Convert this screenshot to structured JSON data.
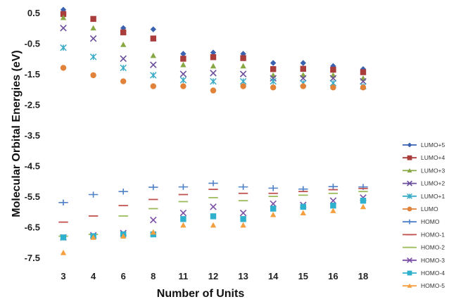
{
  "chart_data": {
    "type": "scatter",
    "title": "",
    "xlabel": "Number of Units",
    "ylabel": "Molecular Orbital  Energies (eV)",
    "categories": [
      "3",
      "4",
      "6",
      "8",
      "11",
      "12",
      "13",
      "14",
      "15",
      "16",
      "18"
    ],
    "yticks": [
      "0.5",
      "-0.5",
      "-1.5",
      "-2.5",
      "-3.5",
      "-4.5",
      "-5.5",
      "-6.5",
      "-7.5"
    ],
    "ylim": [
      -7.8,
      0.8
    ],
    "grid": false,
    "legend_position": "right",
    "series": [
      {
        "name": "LUMO+5",
        "color": "#3a62b0",
        "marker": "diamond",
        "values": [
          0.62,
          0.32,
          0.02,
          -0.02,
          -0.82,
          -0.78,
          -0.82,
          -1.12,
          -1.12,
          -1.22,
          -1.32
        ]
      },
      {
        "name": "LUMO+4",
        "color": "#a93d3b",
        "marker": "square",
        "values": [
          0.48,
          0.32,
          -0.12,
          -0.32,
          -0.98,
          -0.93,
          -0.96,
          -1.32,
          -1.31,
          -1.34,
          -1.42
        ]
      },
      {
        "name": "LUMO+3",
        "color": "#87a744",
        "marker": "triangle",
        "values": [
          0.36,
          0.02,
          -0.52,
          -0.88,
          -1.18,
          -1.22,
          -1.22,
          -1.52,
          -1.51,
          -1.52,
          -1.62
        ]
      },
      {
        "name": "LUMO+2",
        "color": "#6a4d9c",
        "marker": "x",
        "values": [
          0.02,
          -0.32,
          -0.98,
          -1.18,
          -1.48,
          -1.45,
          -1.48,
          -1.62,
          -1.62,
          -1.62,
          -1.72
        ]
      },
      {
        "name": "LUMO+1",
        "color": "#3aabc6",
        "marker": "star",
        "values": [
          -0.62,
          -0.92,
          -1.28,
          -1.52,
          -1.68,
          -1.72,
          -1.72,
          -1.72,
          -1.78,
          -1.78,
          -1.88
        ]
      },
      {
        "name": "LUMO",
        "color": "#e0823a",
        "marker": "circle",
        "values": [
          -1.28,
          -1.52,
          -1.72,
          -1.88,
          -1.88,
          -2.02,
          -1.88,
          -1.92,
          -1.88,
          -1.92,
          -1.92
        ]
      },
      {
        "name": "HOMO",
        "color": "#4f81c7",
        "marker": "plus",
        "values": [
          -5.68,
          -5.42,
          -5.32,
          -5.18,
          -5.17,
          -5.05,
          -5.17,
          -5.21,
          -5.24,
          -5.16,
          -5.17
        ]
      },
      {
        "name": "HOMO-1",
        "color": "#c0504d",
        "marker": "dash",
        "values": [
          -6.32,
          -6.12,
          -5.78,
          -5.58,
          -5.42,
          -5.25,
          -5.38,
          -5.38,
          -5.32,
          -5.26,
          -5.22
        ]
      },
      {
        "name": "HOMO-2",
        "color": "#9bbb59",
        "marker": "dash",
        "values": [
          -6.78,
          -6.72,
          -6.12,
          -5.88,
          -5.65,
          -5.52,
          -5.62,
          -5.48,
          -5.44,
          -5.38,
          -5.32
        ]
      },
      {
        "name": "HOMO-3",
        "color": "#7c4fa6",
        "marker": "x",
        "values": [
          -6.82,
          -6.75,
          -6.68,
          -6.25,
          -6.02,
          -5.82,
          -6.02,
          -5.72,
          -5.76,
          -5.62,
          -5.52
        ]
      },
      {
        "name": "HOMO-4",
        "color": "#2fb0cc",
        "marker": "square",
        "values": [
          -6.82,
          -6.78,
          -6.72,
          -6.72,
          -6.22,
          -6.13,
          -6.22,
          -5.88,
          -5.82,
          -5.78,
          -5.62
        ]
      },
      {
        "name": "HOMO-5",
        "color": "#f4a040",
        "marker": "triangle",
        "values": [
          -7.32,
          -6.82,
          -6.78,
          -6.65,
          -6.42,
          -6.42,
          -6.42,
          -6.08,
          -6.02,
          -5.95,
          -5.82
        ]
      }
    ]
  }
}
